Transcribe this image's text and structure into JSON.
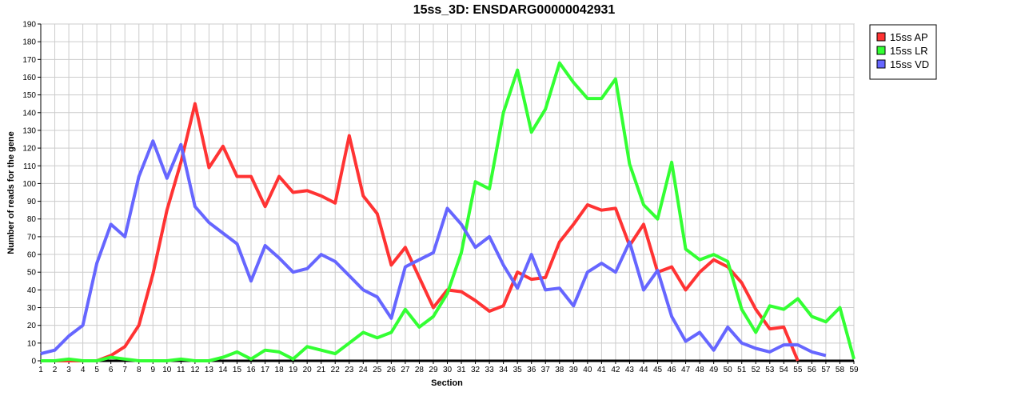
{
  "chart_data": {
    "type": "line",
    "title": "15ss_3D: ENSDARG00000042931",
    "xlabel": "Section",
    "ylabel": "Number of reads for the gene",
    "xlim": [
      1,
      59
    ],
    "ylim": [
      0,
      190
    ],
    "x_ticks": [
      "1",
      "2",
      "3",
      "4",
      "5",
      "6",
      "7",
      "8",
      "9",
      "10",
      "11",
      "12",
      "13",
      "14",
      "15",
      "16",
      "17",
      "18",
      "19",
      "20",
      "21",
      "22",
      "23",
      "24",
      "25",
      "26",
      "27",
      "28",
      "29",
      "30",
      "31",
      "32",
      "33",
      "34",
      "35",
      "36",
      "37",
      "38",
      "39",
      "40",
      "41",
      "42",
      "43",
      "44",
      "45",
      "46",
      "47",
      "48",
      "49",
      "50",
      "51",
      "52",
      "53",
      "54",
      "55",
      "56",
      "57",
      "58",
      "59"
    ],
    "y_ticks": [
      "0",
      "10",
      "20",
      "30",
      "40",
      "50",
      "60",
      "70",
      "80",
      "90",
      "100",
      "110",
      "120",
      "130",
      "140",
      "150",
      "160",
      "170",
      "180",
      "190"
    ],
    "grid": true,
    "legend_position": "top-right",
    "series": [
      {
        "name": "15ss AP",
        "color": "#ff3333",
        "x": [
          1,
          2,
          3,
          4,
          5,
          6,
          7,
          8,
          9,
          10,
          11,
          12,
          13,
          14,
          15,
          16,
          17,
          18,
          19,
          20,
          21,
          22,
          23,
          24,
          25,
          26,
          27,
          28,
          29,
          30,
          31,
          32,
          33,
          34,
          35,
          36,
          37,
          38,
          39,
          40,
          41,
          42,
          43,
          44,
          45,
          46,
          47,
          48,
          49,
          50,
          51,
          52,
          53,
          54,
          55
        ],
        "values": [
          0,
          0,
          0,
          0,
          0,
          3,
          8,
          20,
          49,
          85,
          112,
          145,
          109,
          121,
          104,
          104,
          87,
          104,
          95,
          96,
          93,
          89,
          127,
          93,
          83,
          54,
          64,
          47,
          30,
          40,
          39,
          34,
          28,
          31,
          50,
          46,
          47,
          67,
          77,
          88,
          85,
          86,
          65,
          77,
          50,
          53,
          40,
          50,
          57,
          53,
          44,
          29,
          18,
          19,
          0
        ]
      },
      {
        "name": "15ss LR",
        "color": "#33ff33",
        "x": [
          1,
          2,
          3,
          4,
          5,
          6,
          7,
          8,
          9,
          10,
          11,
          12,
          13,
          14,
          15,
          16,
          17,
          18,
          19,
          20,
          21,
          22,
          23,
          24,
          25,
          26,
          27,
          28,
          29,
          30,
          31,
          32,
          33,
          34,
          35,
          36,
          37,
          38,
          39,
          40,
          41,
          42,
          43,
          44,
          45,
          46,
          47,
          48,
          49,
          50,
          51,
          52,
          53,
          54,
          55,
          56,
          57,
          58,
          59
        ],
        "values": [
          0,
          0,
          1,
          0,
          0,
          2,
          1,
          0,
          0,
          0,
          1,
          0,
          0,
          2,
          5,
          1,
          6,
          5,
          1,
          8,
          6,
          4,
          10,
          16,
          13,
          16,
          29,
          19,
          25,
          38,
          61,
          101,
          97,
          140,
          164,
          129,
          142,
          168,
          157,
          148,
          148,
          159,
          111,
          88,
          80,
          112,
          63,
          57,
          60,
          56,
          29,
          16,
          31,
          29,
          35,
          25,
          22,
          30,
          1
        ]
      },
      {
        "name": "15ss VD",
        "color": "#6666ff",
        "x": [
          1,
          2,
          3,
          4,
          5,
          6,
          7,
          8,
          9,
          10,
          11,
          12,
          13,
          14,
          15,
          16,
          17,
          18,
          19,
          20,
          21,
          22,
          23,
          24,
          25,
          26,
          27,
          28,
          29,
          30,
          31,
          32,
          33,
          34,
          35,
          36,
          37,
          38,
          39,
          40,
          41,
          42,
          43,
          44,
          45,
          46,
          47,
          48,
          49,
          50,
          51,
          52,
          53,
          54,
          55,
          56,
          57
        ],
        "values": [
          4,
          6,
          14,
          20,
          55,
          77,
          70,
          104,
          124,
          103,
          122,
          87,
          78,
          72,
          66,
          45,
          65,
          58,
          50,
          52,
          60,
          56,
          48,
          40,
          36,
          24,
          53,
          57,
          61,
          86,
          77,
          64,
          70,
          54,
          41,
          60,
          40,
          41,
          31,
          50,
          55,
          50,
          67,
          40,
          51,
          25,
          11,
          16,
          6,
          19,
          10,
          7,
          5,
          9,
          9,
          5,
          3
        ]
      }
    ]
  }
}
